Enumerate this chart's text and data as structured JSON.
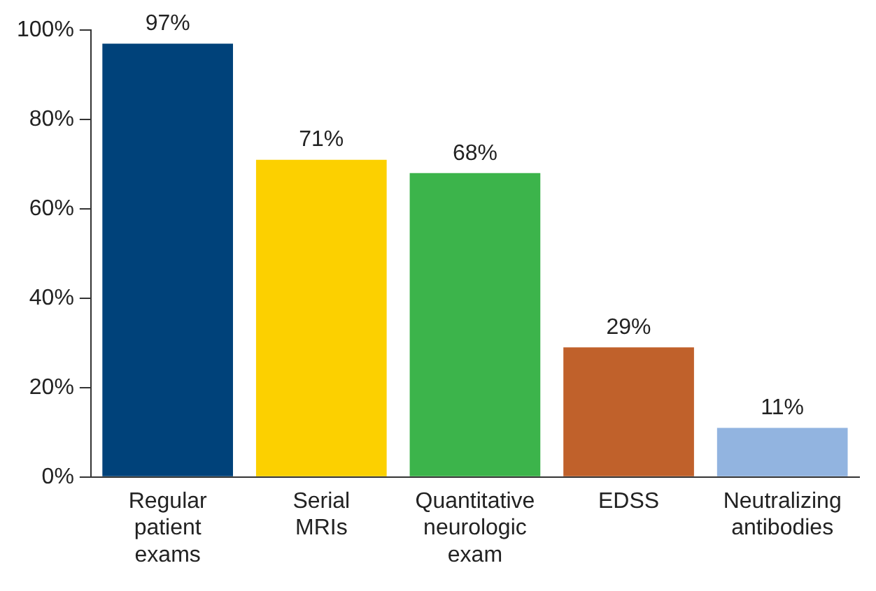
{
  "chart_data": {
    "type": "bar",
    "categories": [
      "Regular patient exams",
      "Serial MRIs",
      "Quantitative neurologic exam",
      "EDSS",
      "Neutralizing antibodies"
    ],
    "values": [
      97,
      71,
      68,
      29,
      11
    ],
    "colors": [
      "#00427a",
      "#fcd000",
      "#3cb44b",
      "#c0612b",
      "#92b4e0"
    ],
    "value_labels": [
      "97%",
      "71%",
      "68%",
      "29%",
      "11%"
    ],
    "ylim": [
      0,
      100
    ],
    "yticks": [
      {
        "value": 0,
        "label": "0%"
      },
      {
        "value": 20,
        "label": "20%"
      },
      {
        "value": 40,
        "label": "40%"
      },
      {
        "value": 60,
        "label": "60%"
      },
      {
        "value": 80,
        "label": "80%"
      },
      {
        "value": 100,
        "label": "100%"
      }
    ],
    "grid": false,
    "legend": false
  }
}
